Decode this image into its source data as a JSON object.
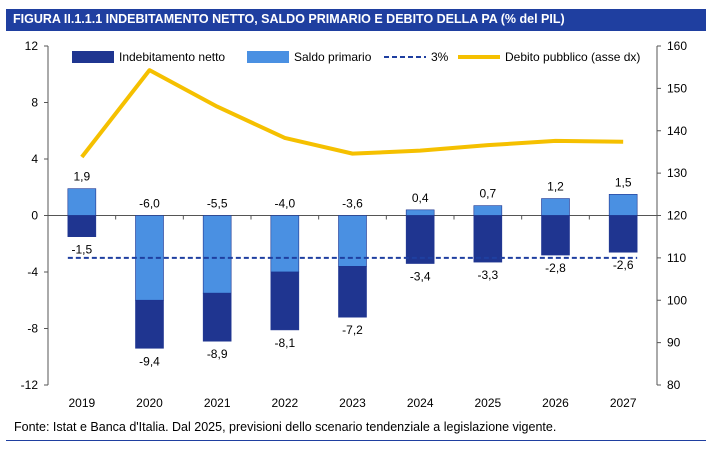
{
  "figure": {
    "title": "FIGURA II.1.1.1 INDEBITAMENTO NETTO, SALDO PRIMARIO E DEBITO DELLA PA (% del PIL)",
    "source": "Fonte: Istat e Banca d'Italia. Dal 2025, previsioni dello scenario tendenziale a legislazione vigente."
  },
  "colors": {
    "title_bg": "#1f3fa0",
    "indebitamento": "#1f3590",
    "saldo": "#4a90e2",
    "threshold": "#1f3fa0",
    "debito": "#f5c000"
  },
  "chart_data": {
    "type": "bar",
    "categories": [
      "2019",
      "2020",
      "2021",
      "2022",
      "2023",
      "2024",
      "2025",
      "2026",
      "2027"
    ],
    "series": [
      {
        "name": "Indebitamento netto",
        "kind": "bar",
        "axis": "left",
        "values": [
          -1.5,
          -9.4,
          -8.9,
          -8.1,
          -7.2,
          -3.4,
          -3.3,
          -2.8,
          -2.6
        ]
      },
      {
        "name": "Saldo primario",
        "kind": "bar",
        "axis": "left",
        "values": [
          1.9,
          -6.0,
          -5.5,
          -4.0,
          -3.6,
          0.4,
          0.7,
          1.2,
          1.5
        ]
      },
      {
        "name": "3%",
        "kind": "dashed-line",
        "axis": "left",
        "values": [
          -3,
          -3,
          -3,
          -3,
          -3,
          -3,
          -3,
          -3,
          -3
        ]
      },
      {
        "name": "Debito pubblico (asse dx)",
        "kind": "line",
        "axis": "right",
        "values": [
          133.8,
          154.3,
          145.7,
          138.3,
          134.6,
          135.3,
          136.6,
          137.6,
          137.4
        ]
      }
    ],
    "bar_labels": {
      "saldo": [
        "1,9",
        "-6,0",
        "-5,5",
        "-4,0",
        "-3,6",
        "0,4",
        "0,7",
        "1,2",
        "1,5"
      ],
      "indebitamento": [
        "-1,5",
        "-9,4",
        "-8,9",
        "-8,1",
        "-7,2",
        "-3,4",
        "-3,3",
        "-2,8",
        "-2,6"
      ]
    },
    "y_left": {
      "ylim": [
        -12,
        12
      ],
      "ticks": [
        "12",
        "8",
        "4",
        "0",
        "-4",
        "-8",
        "-12"
      ],
      "tick_values": [
        12,
        8,
        4,
        0,
        -4,
        -8,
        -12
      ]
    },
    "y_right": {
      "ylim": [
        80,
        160
      ],
      "ticks": [
        "160",
        "150",
        "140",
        "130",
        "120",
        "110",
        "100",
        "90",
        "80"
      ],
      "tick_values": [
        160,
        150,
        140,
        130,
        120,
        110,
        100,
        90,
        80
      ]
    },
    "legend": {
      "placement": "top",
      "items": [
        "Indebitamento netto",
        "Saldo primario",
        "3%",
        "Debito pubblico (asse dx)"
      ]
    },
    "grid": false
  }
}
